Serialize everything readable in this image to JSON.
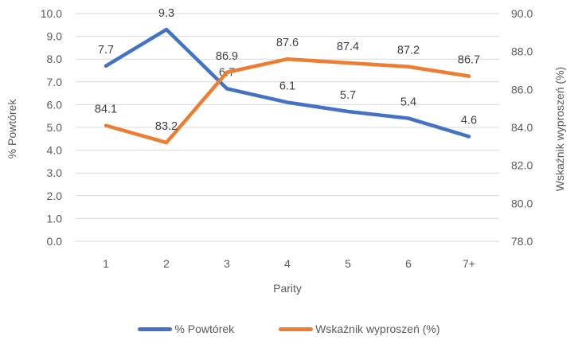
{
  "chart_data": {
    "type": "line",
    "categories": [
      "1",
      "2",
      "3",
      "4",
      "5",
      "6",
      "7+"
    ],
    "series": [
      {
        "name": "% Powtórek",
        "axis": "left",
        "color": "#4472C4",
        "values": [
          7.7,
          9.3,
          6.7,
          6.1,
          5.7,
          5.4,
          4.6
        ]
      },
      {
        "name": "Wskaźnik wyproszeń (%)",
        "axis": "right",
        "color": "#ED7D31",
        "values": [
          84.1,
          83.2,
          86.9,
          87.6,
          87.4,
          87.2,
          86.7
        ]
      }
    ],
    "xlabel": "Parity",
    "axes": {
      "left": {
        "label": "% Powtórek",
        "min": 0,
        "max": 10,
        "step": 1
      },
      "right": {
        "label": "Wskaźnik wyproszeń (%)",
        "min": 78,
        "max": 90,
        "step": 2
      }
    },
    "grid": true,
    "legend_position": "bottom",
    "tick_decimals": 1,
    "data_label_decimals": 1
  },
  "colors": {
    "gridline": "#D9D9D9",
    "axis_text": "#595959",
    "data_label": "#404040",
    "background": "#FFFFFF"
  }
}
